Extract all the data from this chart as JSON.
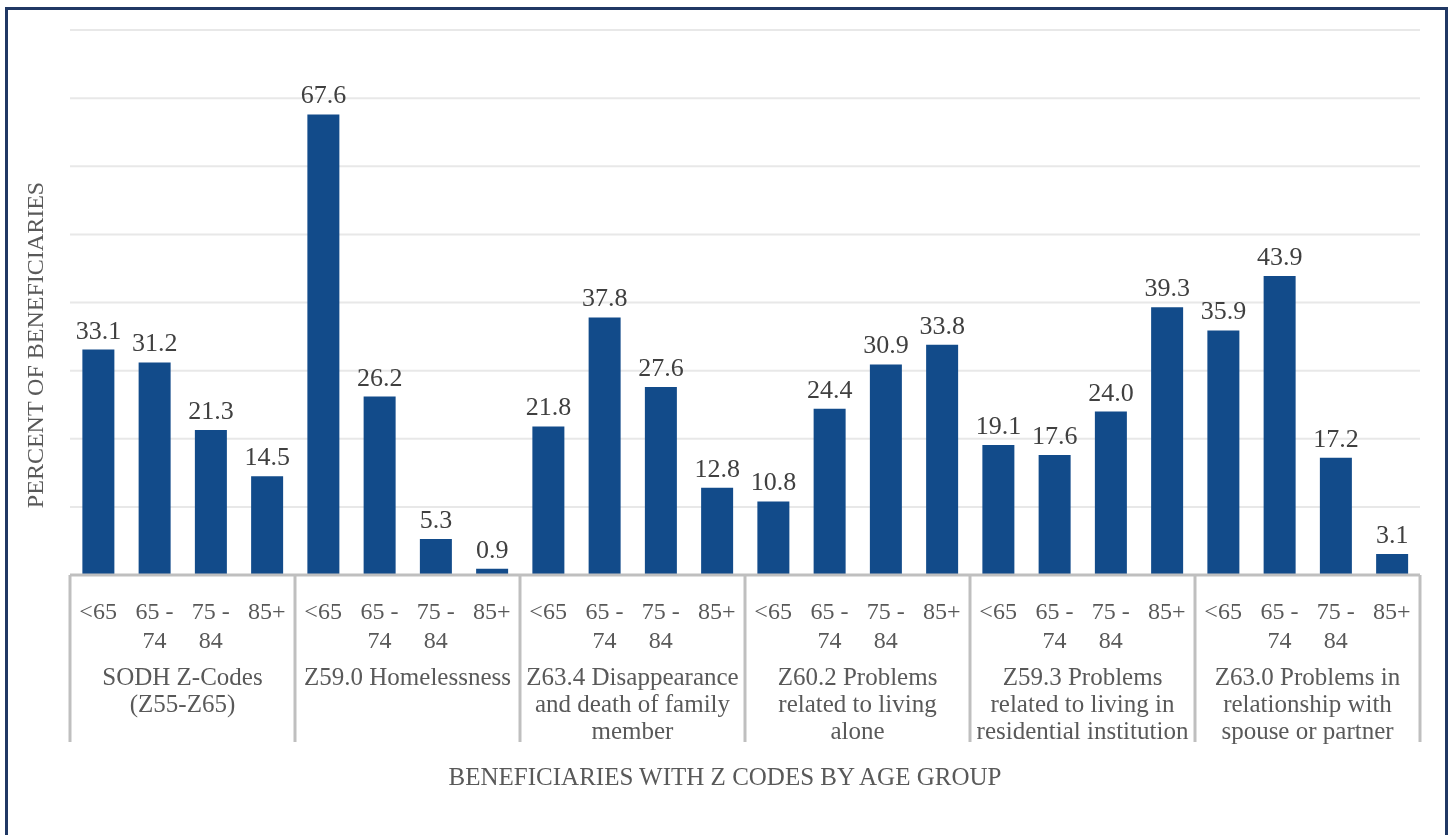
{
  "chart_data": {
    "type": "bar",
    "xlabel": "BENEFICIARIES WITH Z CODES BY AGE GROUP",
    "ylabel": "PERCENT OF BENEFICIARIES",
    "categories": [
      "<65",
      "65 - 74",
      "75 - 84",
      "85+",
      "<65",
      "65 - 74",
      "75 - 84",
      "85+",
      "<65",
      "65 - 74",
      "75 - 84",
      "85+",
      "<65",
      "65 - 74",
      "75 - 84",
      "85+",
      "<65",
      "65 - 74",
      "75 - 84",
      "85+",
      "<65",
      "65 - 74",
      "75 - 84",
      "85+"
    ],
    "values": [
      33.1,
      31.2,
      21.3,
      14.5,
      67.6,
      26.2,
      5.3,
      0.9,
      21.8,
      37.8,
      27.6,
      12.8,
      10.8,
      24.4,
      30.9,
      33.8,
      19.1,
      17.6,
      24.0,
      39.3,
      35.9,
      43.9,
      17.2,
      3.1
    ],
    "value_labels": [
      "33.1",
      "31.2",
      "21.3",
      "14.5",
      "67.6",
      "26.2",
      "5.3",
      "0.9",
      "21.8",
      "37.8",
      "27.6",
      "12.8",
      "10.8",
      "24.4",
      "30.9",
      "33.8",
      "19.1",
      "17.6",
      "24.0",
      "39.3",
      "35.9",
      "43.9",
      "17.2",
      "3.1"
    ],
    "color": "#124b8a",
    "annotations": [
      "SODH Z-Codes (Z55-Z65)",
      "Z59.0 Homelessness",
      "Z63.4 Disappearance and death of family member",
      "Z60.2 Problems related to living alone",
      "Z59.3 Problems related to living in residential institution",
      "Z63.0 Problems in relationship with spouse or partner"
    ],
    "ylim": [
      0,
      80
    ],
    "yticks": [
      {
        "value": 0,
        "label": null
      },
      {
        "value": 10,
        "label": null
      },
      {
        "value": 20,
        "label": null
      },
      {
        "value": 30,
        "label": null
      },
      {
        "value": 40,
        "label": null
      },
      {
        "value": 50,
        "label": null
      },
      {
        "value": 60,
        "label": null
      },
      {
        "value": 70,
        "label": null
      },
      {
        "value": 80,
        "label": null
      }
    ],
    "grid": "y",
    "tick_labels": "x"
  }
}
